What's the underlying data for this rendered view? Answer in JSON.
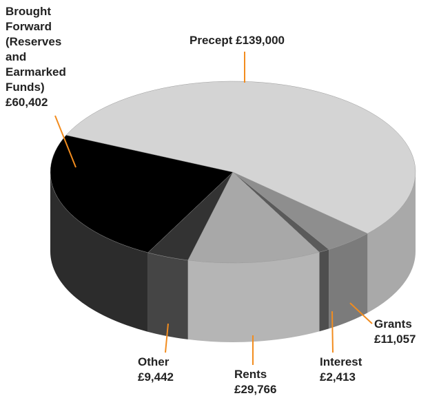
{
  "chart_data": {
    "type": "pie3d",
    "categories": [
      "Precept",
      "Grants",
      "Interest",
      "Rents",
      "Other",
      "Brought Forward (Reserves and Earmarked Funds)"
    ],
    "values": [
      139000,
      11057,
      2413,
      29766,
      9442,
      60402
    ],
    "value_labels": [
      "£139,000",
      "£11,057",
      "£2,413",
      "£29,766",
      "£9,442",
      "£60,402"
    ],
    "colors": [
      "#d4d4d4",
      "#8e8e8e",
      "#5a5a5a",
      "#a8a8a8",
      "#333333",
      "#000000"
    ],
    "side_colors": [
      "#a9a9a9",
      "#7b7b7b",
      "#4e4e4e",
      "#b5b5b5",
      "#454545",
      "#2c2c2c"
    ],
    "label_color": "#f28c1e"
  }
}
